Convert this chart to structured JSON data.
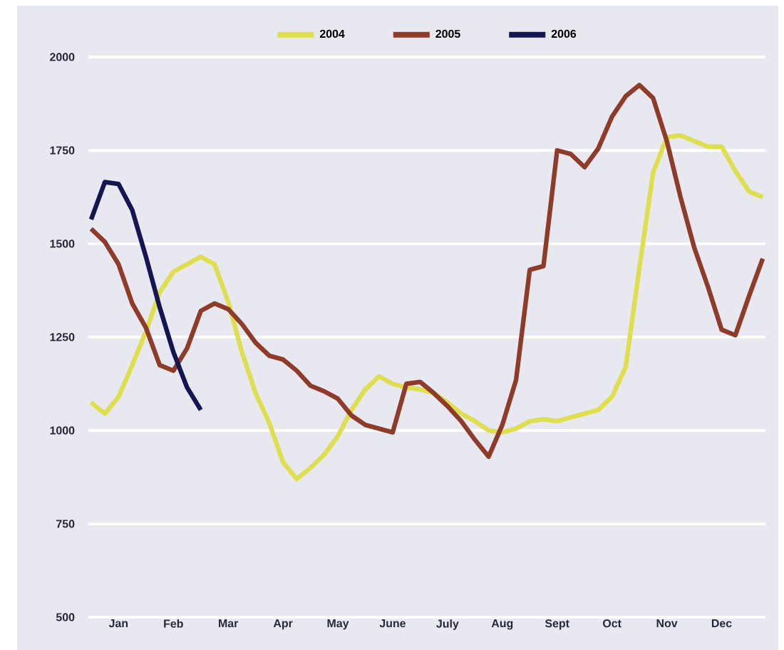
{
  "chart_data": {
    "type": "line",
    "categories": [
      null,
      null,
      "Jan",
      null,
      null,
      null,
      "Feb",
      null,
      null,
      null,
      "Mar",
      null,
      null,
      null,
      "Apr",
      null,
      null,
      null,
      "May",
      null,
      null,
      null,
      "June",
      null,
      null,
      null,
      "July",
      null,
      null,
      null,
      "Aug",
      null,
      null,
      null,
      "Sept",
      null,
      null,
      null,
      "Oct",
      null,
      null,
      null,
      "Nov",
      null,
      null,
      null,
      "Dec",
      null,
      null,
      null
    ],
    "ylim": [
      500,
      2000
    ],
    "yticks": [
      500,
      750,
      1000,
      1250,
      1500,
      1750,
      2000
    ],
    "grid": "y",
    "legend": "top",
    "marker": "none",
    "line_style": "solid",
    "series": [
      {
        "name": "2004",
        "color": "#dede4e",
        "values": [
          1075,
          1045,
          1090,
          1175,
          1265,
          1370,
          1425,
          1445,
          1465,
          1445,
          1345,
          1210,
          1100,
          1020,
          915,
          870,
          900,
          935,
          985,
          1055,
          1110,
          1145,
          1125,
          1115,
          1110,
          1100,
          1075,
          1045,
          1025,
          1000,
          995,
          1005,
          1025,
          1030,
          1025,
          1035,
          1045,
          1055,
          1090,
          1170,
          1435,
          1690,
          1785,
          1790,
          1775,
          1760,
          1760,
          1695,
          1640,
          1625
        ]
      },
      {
        "name": "2005",
        "color": "#8e3b2a",
        "values": [
          1540,
          1505,
          1445,
          1340,
          1275,
          1175,
          1160,
          1220,
          1320,
          1340,
          1325,
          1285,
          1235,
          1200,
          1190,
          1160,
          1120,
          1105,
          1085,
          1040,
          1015,
          1005,
          995,
          1125,
          1130,
          1100,
          1065,
          1025,
          975,
          930,
          1015,
          1135,
          1430,
          1440,
          1750,
          1740,
          1705,
          1755,
          1840,
          1895,
          1925,
          1890,
          1775,
          1625,
          1490,
          1385,
          1270,
          1255,
          1360,
          1460
        ]
      },
      {
        "name": "2006",
        "color": "#141652",
        "values": [
          1565,
          1665,
          1660,
          1590,
          1465,
          1330,
          1210,
          1115,
          1055,
          null,
          null,
          null,
          null,
          null,
          null,
          null,
          null,
          null,
          null,
          null,
          null,
          null,
          null,
          null,
          null,
          null,
          null,
          null,
          null,
          null,
          null,
          null,
          null,
          null,
          null,
          null,
          null,
          null,
          null,
          null,
          null,
          null,
          null,
          null,
          null,
          null,
          null,
          null,
          null,
          null
        ]
      }
    ]
  }
}
